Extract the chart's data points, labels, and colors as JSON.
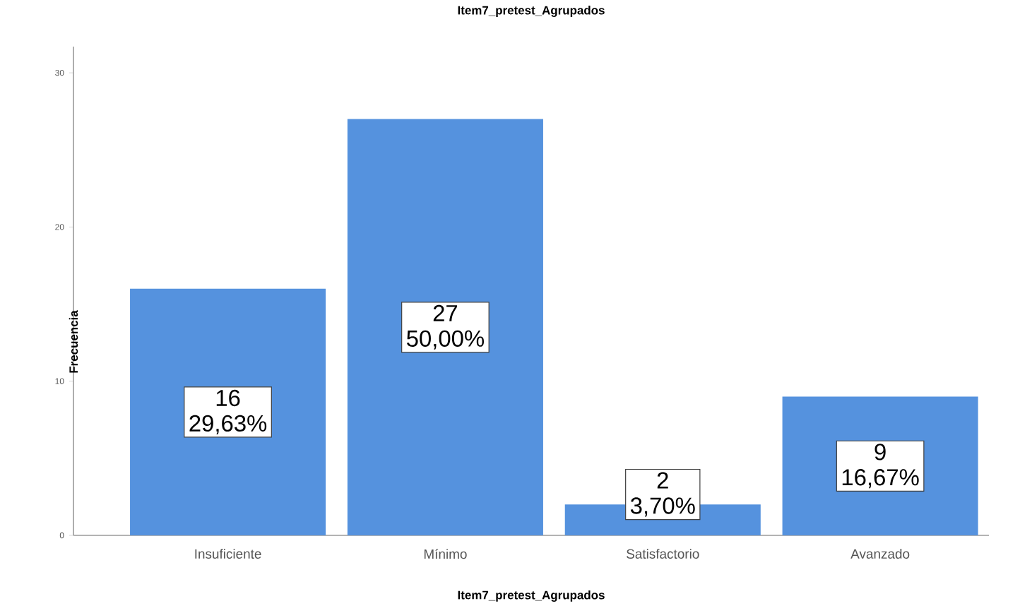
{
  "chart_data": {
    "type": "bar",
    "title": "Item7_pretest_Agrupados",
    "xlabel": "Item7_pretest_Agrupados",
    "ylabel": "Frecuencia",
    "categories": [
      "Insuficiente",
      "Mínimo",
      "Satisfactorio",
      "Avanzado"
    ],
    "values": [
      16,
      27,
      2,
      9
    ],
    "color": "#5592de",
    "ylim": [
      0,
      31.7
    ],
    "yticks": [
      0,
      10,
      20,
      30
    ],
    "value_labels": [
      "16 29,63%",
      "27 50,00%",
      "2 3,70%",
      "9 16,67%"
    ]
  }
}
